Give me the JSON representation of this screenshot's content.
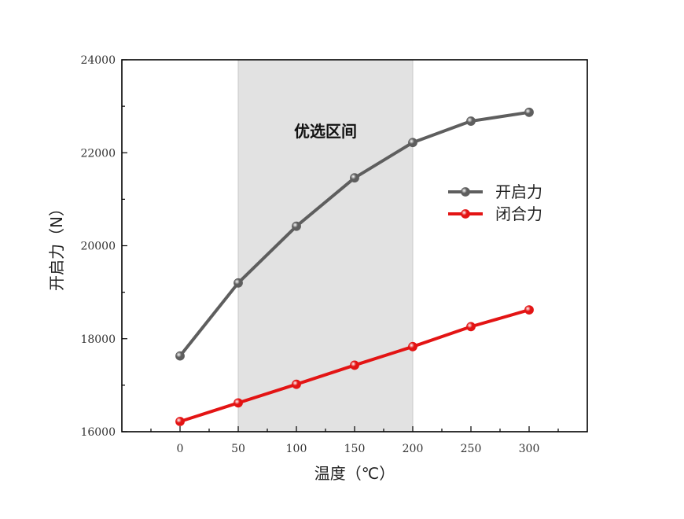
{
  "chart_data": {
    "type": "line",
    "xlabel": "温度（℃）",
    "ylabel": "开启力（N）",
    "x": [
      0,
      50,
      100,
      150,
      200,
      250,
      300
    ],
    "xlim": [
      -50,
      350
    ],
    "ylim": [
      16000,
      24000
    ],
    "x_ticks": [
      "0",
      "50",
      "100",
      "150",
      "200",
      "250",
      "300"
    ],
    "y_ticks": [
      "16000",
      "18000",
      "20000",
      "22000",
      "24000"
    ],
    "grid": false,
    "legend_position": "right",
    "series": [
      {
        "name": "开启力",
        "color": "#5e5e5e",
        "values": [
          17630,
          19200,
          20420,
          21460,
          22220,
          22680,
          22870
        ]
      },
      {
        "name": "闭合力",
        "color": "#e31414",
        "values": [
          16220,
          16620,
          17020,
          17430,
          17830,
          18260,
          18620
        ]
      }
    ],
    "highlight": {
      "label": "优选区间",
      "x_range": [
        50,
        200
      ],
      "color": "#e2e2e2"
    }
  }
}
